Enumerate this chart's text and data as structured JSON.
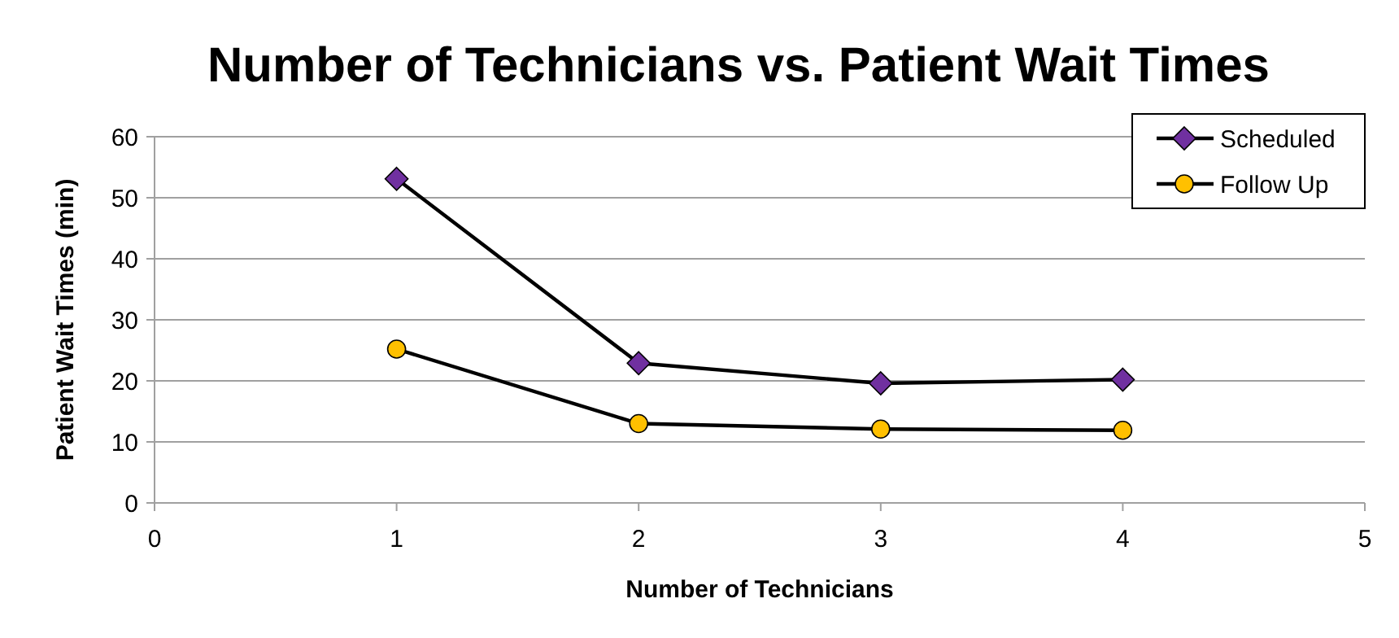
{
  "chart_data": {
    "type": "line",
    "title": "Number of Technicians vs. Patient Wait Times",
    "xlabel": "Number of Technicians",
    "ylabel": "Patient Wait Times (min)",
    "x": [
      1,
      2,
      3,
      4
    ],
    "series": [
      {
        "name": "Scheduled",
        "color": "#7030a0",
        "marker": "diamond",
        "values": [
          53.1,
          22.9,
          19.6,
          20.2
        ]
      },
      {
        "name": "Follow Up",
        "color": "#ffc000",
        "marker": "circle",
        "values": [
          25.2,
          13.0,
          12.1,
          11.9
        ]
      }
    ],
    "xlim": [
      0,
      5
    ],
    "xticks": [
      0,
      1,
      2,
      3,
      4,
      5
    ],
    "ylim": [
      0,
      60
    ],
    "yticks": [
      0,
      10,
      20,
      30,
      40,
      50,
      60
    ],
    "grid": "y",
    "legend": "top right"
  }
}
